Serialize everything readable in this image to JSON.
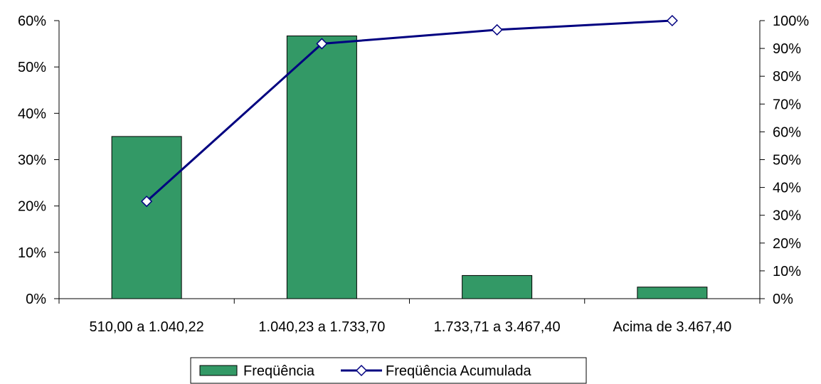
{
  "chart_data": {
    "type": "bar",
    "categories": [
      "510,00 a 1.040,22",
      "1.040,23 a 1.733,70",
      "1.733,71 a 3.467,40",
      "Acima de 3.467,40"
    ],
    "series": [
      {
        "name": "Freqüência",
        "type": "bar",
        "axis": "left",
        "color": "#339966",
        "values": [
          35,
          56.7,
          5,
          2.5
        ]
      },
      {
        "name": "Freqüência Acumulada",
        "type": "line",
        "axis": "right",
        "color": "#000080",
        "marker": "diamond",
        "values": [
          35,
          91.7,
          96.7,
          100
        ]
      }
    ],
    "y_left": {
      "ylim": [
        0,
        60
      ],
      "ticks": [
        0,
        10,
        20,
        30,
        40,
        50,
        60
      ],
      "tick_labels": [
        "0%",
        "10%",
        "20%",
        "30%",
        "40%",
        "50%",
        "60%"
      ]
    },
    "y_right": {
      "ylim": [
        0,
        100
      ],
      "ticks": [
        0,
        10,
        20,
        30,
        40,
        50,
        60,
        70,
        80,
        90,
        100
      ],
      "tick_labels": [
        "0%",
        "10%",
        "20%",
        "30%",
        "40%",
        "50%",
        "60%",
        "70%",
        "80%",
        "90%",
        "100%"
      ]
    },
    "legend": {
      "placement": "bottom-center",
      "items": [
        "Freqüência",
        "Freqüência Acumulada"
      ]
    },
    "grid": false
  }
}
